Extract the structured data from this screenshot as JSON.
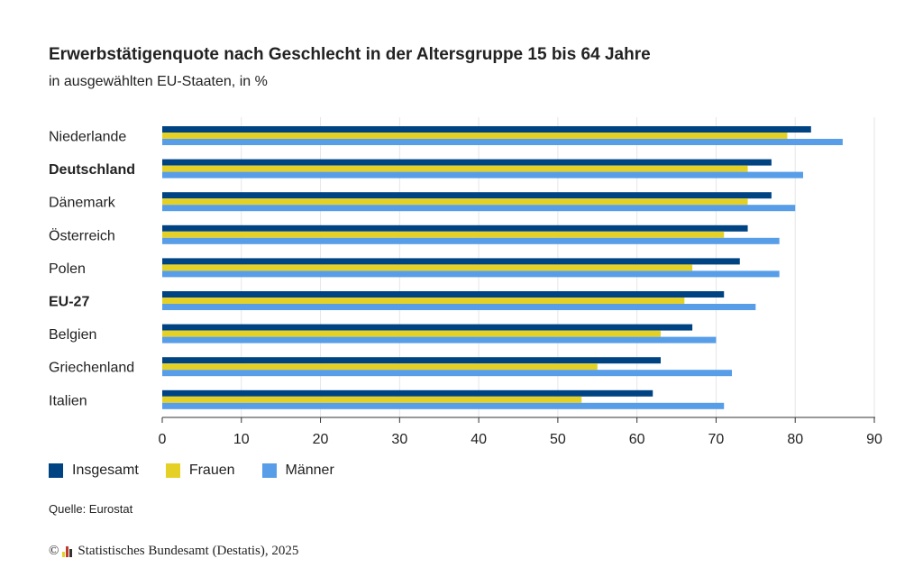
{
  "chart_data": {
    "type": "bar",
    "orientation": "horizontal",
    "title": "Erwerbstätigenquote nach Geschlecht in der Altersgruppe 15 bis 64 Jahre",
    "subtitle": "in ausgewählten EU-Staaten, in %",
    "categories": [
      "Niederlande",
      "Deutschland",
      "Dänemark",
      "Österreich",
      "Polen",
      "EU-27",
      "Belgien",
      "Griechenland",
      "Italien"
    ],
    "bold_categories": [
      "Deutschland",
      "EU-27"
    ],
    "series": [
      {
        "name": "Insgesamt",
        "color": "#004383",
        "values": [
          82,
          77,
          77,
          74,
          73,
          71,
          67,
          63,
          62
        ]
      },
      {
        "name": "Frauen",
        "color": "#e5d126",
        "values": [
          79,
          74,
          74,
          71,
          67,
          66,
          63,
          55,
          53
        ]
      },
      {
        "name": "Männer",
        "color": "#579de8",
        "values": [
          86,
          81,
          80,
          78,
          78,
          75,
          70,
          72,
          71
        ]
      }
    ],
    "xlim": [
      0,
      90
    ],
    "xticks": [
      "0",
      "10",
      "20",
      "30",
      "40",
      "50",
      "60",
      "70",
      "80",
      "90"
    ],
    "grid": true,
    "legend_position": "bottom-left"
  },
  "source": "Quelle: Eurostat",
  "footer": "Statistisches Bundesamt (Destatis), 2025",
  "footer_symbol": "©",
  "colors": {
    "grid": "#e6e6e6",
    "axis": "#333333",
    "logo": [
      "#e5d126",
      "#c0392b",
      "#333333"
    ]
  }
}
